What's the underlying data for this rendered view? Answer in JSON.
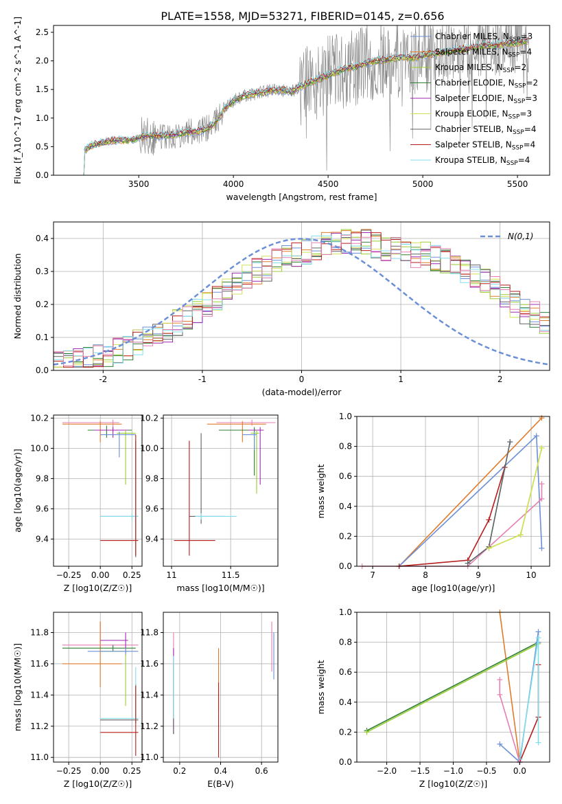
{
  "figure": {
    "title": "PLATE=1558, MJD=53271, FIBERID=0145, z=0.656"
  },
  "palette": {
    "Chabrier MILES": "#6a8fd6",
    "Salpeter MILES": "#e07b2a",
    "Kroupa MILES": "#9acd32",
    "Chabrier ELODIE": "#2e7d32",
    "Salpeter ELODIE": "#9c27b0",
    "Kroupa ELODIE": "#d4e157",
    "Chabrier STELIB": "#616161",
    "Salpeter STELIB": "#b71c1c",
    "Kroupa STELIB": "#80deea",
    "extra pink": "#e57fb1",
    "data": "#808080",
    "normal curve": "#6a8fd6"
  },
  "chart_data": [
    {
      "id": "spectrum",
      "type": "line",
      "xlabel": "wavelength [Angstrom, rest frame]",
      "ylabel": "Flux [f_λ10^-17 erg cm^-2 s^-1 A^-1]",
      "xlim": [
        3050,
        5670
      ],
      "ylim": [
        0,
        2.62
      ],
      "xticks": [
        3500,
        4000,
        4500,
        5000,
        5500
      ],
      "yticks": [
        0.0,
        0.5,
        1.0,
        1.5,
        2.0,
        2.5
      ],
      "legend_loc": "upper right",
      "legend": [
        {
          "label": "Chabrier MILES, N",
          "sub": "SSP",
          "tail": "=3",
          "color": "#6a8fd6"
        },
        {
          "label": "Salpeter MILES, N",
          "sub": "SSP",
          "tail": "=4",
          "color": "#e07b2a"
        },
        {
          "label": "Kroupa MILES, N",
          "sub": "SSP",
          "tail": "=2",
          "color": "#9acd32"
        },
        {
          "label": "Chabrier ELODIE, N",
          "sub": "SSP",
          "tail": "=2",
          "color": "#2e7d32"
        },
        {
          "label": "Salpeter ELODIE, N",
          "sub": "SSP",
          "tail": "=3",
          "color": "#9c27b0"
        },
        {
          "label": "Kroupa ELODIE, N",
          "sub": "SSP",
          "tail": "=3",
          "color": "#d4e157"
        },
        {
          "label": "Chabrier STELIB, N",
          "sub": "SSP",
          "tail": "=4",
          "color": "#616161"
        },
        {
          "label": "Salpeter STELIB, N",
          "sub": "SSP",
          "tail": "=4",
          "color": "#b71c1c"
        },
        {
          "label": "Kroupa STELIB, N",
          "sub": "SSP",
          "tail": "=4",
          "color": "#80deea"
        }
      ],
      "model_continuum": {
        "x": [
          3210,
          3250,
          3300,
          3350,
          3400,
          3450,
          3500,
          3550,
          3600,
          3650,
          3700,
          3750,
          3800,
          3850,
          3900,
          3950,
          4000,
          4050,
          4100,
          4150,
          4200,
          4250,
          4300,
          4350,
          4400,
          4450,
          4500,
          4550,
          4600,
          4650,
          4700,
          4750,
          4800,
          4850,
          4900,
          4950,
          5000,
          5050,
          5100,
          5150,
          5200,
          5250,
          5300,
          5350,
          5400,
          5450,
          5500,
          5550
        ],
        "y": [
          0.43,
          0.52,
          0.57,
          0.6,
          0.62,
          0.6,
          0.66,
          0.7,
          0.68,
          0.7,
          0.72,
          0.75,
          0.77,
          0.8,
          0.9,
          1.15,
          1.3,
          1.38,
          1.42,
          1.45,
          1.48,
          1.5,
          1.45,
          1.55,
          1.62,
          1.68,
          1.75,
          1.82,
          1.88,
          1.9,
          1.96,
          2.0,
          2.02,
          2.05,
          2.06,
          2.05,
          2.1,
          2.12,
          2.15,
          2.18,
          2.2,
          2.22,
          2.25,
          2.27,
          2.28,
          2.3,
          2.32,
          2.35
        ]
      },
      "data_range": [
        3210,
        5560
      ]
    },
    {
      "id": "residuals",
      "type": "histogram",
      "xlabel": "(data-model)/error",
      "ylabel": "Normed distribution",
      "xlim": [
        -2.5,
        2.5
      ],
      "ylim": [
        0,
        0.45
      ],
      "xticks": [
        -2,
        -1,
        0,
        1,
        2
      ],
      "yticks": [
        0.0,
        0.1,
        0.2,
        0.3,
        0.4
      ],
      "legend": [
        {
          "label": "N(0,1)",
          "color": "#6a8fd6"
        }
      ],
      "bin_edges_start": -2.5,
      "bin_width": 0.1,
      "base_profile": [
        0.02,
        0.025,
        0.03,
        0.035,
        0.04,
        0.05,
        0.06,
        0.07,
        0.085,
        0.1,
        0.11,
        0.125,
        0.145,
        0.16,
        0.18,
        0.2,
        0.22,
        0.24,
        0.26,
        0.28,
        0.3,
        0.31,
        0.33,
        0.34,
        0.35,
        0.36,
        0.37,
        0.38,
        0.38,
        0.39,
        0.395,
        0.39,
        0.38,
        0.37,
        0.37,
        0.36,
        0.35,
        0.35,
        0.34,
        0.33,
        0.32,
        0.3,
        0.29,
        0.27,
        0.25,
        0.23,
        0.2,
        0.18,
        0.17,
        0.15
      ]
    },
    {
      "id": "age-Z",
      "type": "errorbar",
      "xlabel": "Z [log10(Z/Z☉)]",
      "ylabel": "age  [log10(age/yr)]",
      "xlim": [
        -0.37,
        0.33
      ],
      "ylim": [
        9.22,
        10.22
      ],
      "xticks": [
        -0.25,
        0.0,
        0.25
      ],
      "xticklabels": [
        "−0.25",
        "0.00",
        "0.25"
      ],
      "yticks": [
        9.4,
        9.6,
        9.8,
        10.0,
        10.2
      ],
      "points": [
        {
          "x": 0.1,
          "y": 10.17,
          "xerr": [
            0.4,
            0.05
          ],
          "yerr": [
            0.06,
            0.02
          ],
          "color": "#e57fb1"
        },
        {
          "x": 0.0,
          "y": 10.16,
          "xerr": [
            0.3,
            0.17
          ],
          "yerr": [
            0.12,
            0.02
          ],
          "color": "#e07b2a"
        },
        {
          "x": 0.05,
          "y": 10.12,
          "xerr": [
            0.15,
            0.2
          ],
          "yerr": [
            0.05,
            0.03
          ],
          "color": "#2e7d32"
        },
        {
          "x": 0.1,
          "y": 10.12,
          "xerr": [
            0.15,
            0.12
          ],
          "yerr": [
            0.05,
            0.02
          ],
          "color": "#9c27b0"
        },
        {
          "x": 0.2,
          "y": 10.1,
          "xerr": [
            0.07,
            0.08
          ],
          "yerr": [
            0.34,
            0.02
          ],
          "color": "#9acd32"
        },
        {
          "x": 0.15,
          "y": 10.09,
          "xerr": [
            0.15,
            0.13
          ],
          "yerr": [
            0.15,
            0.02
          ],
          "color": "#6a8fd6"
        },
        {
          "x": 0.28,
          "y": 9.55,
          "xerr": [
            0.28,
            0.02
          ],
          "yerr": [
            0.27,
            0.5
          ],
          "color": "#616161"
        },
        {
          "x": 0.25,
          "y": 9.55,
          "xerr": [
            0.25,
            0.05
          ],
          "yerr": [
            0.02,
            0.02
          ],
          "color": "#80deea"
        },
        {
          "x": 0.28,
          "y": 9.39,
          "xerr": [
            0.28,
            0.02
          ],
          "yerr": [
            0.1,
            0.7
          ],
          "color": "#b71c1c"
        }
      ]
    },
    {
      "id": "age-mass",
      "type": "errorbar",
      "xlabel": "mass [log10(M/M☉)]",
      "ylabel": "",
      "xlim": [
        10.93,
        11.9
      ],
      "ylim": [
        9.22,
        10.22
      ],
      "xticks": [
        11.0,
        11.5
      ],
      "yticks": [
        9.4,
        9.6,
        9.8,
        10.0,
        10.2
      ],
      "points": [
        {
          "x": 11.68,
          "y": 10.17,
          "xerr": [
            0.3,
            0.2
          ],
          "yerr": [
            0.02,
            0.02
          ],
          "color": "#e57fb1"
        },
        {
          "x": 11.6,
          "y": 10.16,
          "xerr": [
            0.3,
            0.2
          ],
          "yerr": [
            0.12,
            0.02
          ],
          "color": "#e07b2a"
        },
        {
          "x": 11.7,
          "y": 10.12,
          "xerr": [
            0.3,
            0.02
          ],
          "yerr": [
            0.3,
            0.02
          ],
          "color": "#2e7d32"
        },
        {
          "x": 11.75,
          "y": 10.12,
          "xerr": [
            0.1,
            0.03
          ],
          "yerr": [
            0.36,
            0.02
          ],
          "color": "#9c27b0"
        },
        {
          "x": 11.72,
          "y": 10.1,
          "xerr": [
            0.05,
            0.02
          ],
          "yerr": [
            0.4,
            0.02
          ],
          "color": "#9acd32"
        },
        {
          "x": 11.7,
          "y": 10.09,
          "xerr": [
            0.1,
            0.02
          ],
          "yerr": [
            0.1,
            0.02
          ],
          "color": "#6a8fd6"
        },
        {
          "x": 11.25,
          "y": 9.55,
          "xerr": [
            0.1,
            0.2
          ],
          "yerr": [
            0.05,
            0.55
          ],
          "color": "#616161"
        },
        {
          "x": 11.25,
          "y": 9.55,
          "xerr": [
            0.05,
            0.3
          ],
          "yerr": [
            0.02,
            0.02
          ],
          "color": "#80deea"
        },
        {
          "x": 11.15,
          "y": 9.39,
          "xerr": [
            0.13,
            0.22
          ],
          "yerr": [
            0.1,
            0.66
          ],
          "color": "#b71c1c"
        }
      ]
    },
    {
      "id": "weight-age",
      "type": "line",
      "xlabel": "age  [log10(age/yr)]",
      "ylabel": "mass weight",
      "xlim": [
        6.7,
        10.35
      ],
      "ylim": [
        0,
        1
      ],
      "xticks": [
        7,
        8,
        9,
        10
      ],
      "yticks": [
        0.0,
        0.2,
        0.4,
        0.6,
        0.8,
        1.0
      ],
      "series": [
        {
          "name": "Salpeter MILES",
          "color": "#e07b2a",
          "x": [
            7.5,
            10.2
          ],
          "y": [
            0.0,
            0.99
          ]
        },
        {
          "name": "Chabrier MILES",
          "color": "#6a8fd6",
          "x": [
            7.5,
            10.1,
            10.2
          ],
          "y": [
            0.0,
            0.87,
            0.12
          ]
        },
        {
          "name": "pink",
          "color": "#e57fb1",
          "x": [
            6.8,
            8.8,
            10.2,
            10.2
          ],
          "y": [
            0.0,
            0.0,
            0.45,
            0.55
          ]
        },
        {
          "name": "Salpeter STELIB",
          "color": "#b71c1c",
          "x": [
            7.5,
            8.8,
            9.2,
            9.5
          ],
          "y": [
            0.0,
            0.04,
            0.31,
            0.66
          ]
        },
        {
          "name": "Kroupa STELIB",
          "color": "#80deea",
          "x": [
            8.8,
            9.2,
            9.6
          ],
          "y": [
            0.02,
            0.13,
            0.83
          ]
        },
        {
          "name": "Chabrier STELIB",
          "color": "#616161",
          "x": [
            8.8,
            9.2,
            9.6
          ],
          "y": [
            0.02,
            0.13,
            0.83
          ]
        },
        {
          "name": "Kroupa MILES",
          "color": "#9acd32",
          "x": [
            9.2,
            9.8,
            10.2
          ],
          "y": [
            0.12,
            0.21,
            0.79
          ]
        },
        {
          "name": "Kroupa ELODIE",
          "color": "#d4e157",
          "x": [
            9.2,
            9.8,
            10.2
          ],
          "y": [
            0.12,
            0.21,
            0.79
          ]
        }
      ]
    },
    {
      "id": "mass-Z",
      "type": "errorbar",
      "xlabel": "Z [log10(Z/Z☉)]",
      "ylabel": "mass [log10(M/M☉)]",
      "xlim": [
        -0.37,
        0.33
      ],
      "ylim": [
        10.97,
        11.93
      ],
      "xticks": [
        -0.25,
        0.0,
        0.25
      ],
      "xticklabels": [
        "−0.25",
        "0.00",
        "0.25"
      ],
      "yticks": [
        11.0,
        11.2,
        11.4,
        11.6,
        11.8
      ],
      "points": [
        {
          "x": 0.0,
          "y": 11.72,
          "xerr": [
            0.3,
            0.3
          ],
          "yerr": [
            0.02,
            0.15
          ],
          "color": "#e57fb1"
        },
        {
          "x": 0.0,
          "y": 11.6,
          "xerr": [
            0.3,
            0.17
          ],
          "yerr": [
            0.15,
            0.27
          ],
          "color": "#e07b2a"
        },
        {
          "x": 0.1,
          "y": 11.7,
          "xerr": [
            0.4,
            0.18
          ],
          "yerr": [
            0.02,
            0.02
          ],
          "color": "#2e7d32"
        },
        {
          "x": 0.2,
          "y": 11.75,
          "xerr": [
            0.2,
            0.02
          ],
          "yerr": [
            0.1,
            0.05
          ],
          "color": "#9c27b0"
        },
        {
          "x": 0.2,
          "y": 11.68,
          "xerr": [
            0.2,
            0.02
          ],
          "yerr": [
            0.35,
            0.02
          ],
          "color": "#9acd32"
        },
        {
          "x": 0.2,
          "y": 11.68,
          "xerr": [
            0.3,
            0.1
          ],
          "yerr": [
            0.02,
            0.02
          ],
          "color": "#6a8fd6"
        },
        {
          "x": 0.28,
          "y": 11.24,
          "xerr": [
            0.28,
            0.02
          ],
          "yerr": [
            0.02,
            0.23
          ],
          "color": "#616161"
        },
        {
          "x": 0.28,
          "y": 11.25,
          "xerr": [
            0.28,
            0.02
          ],
          "yerr": [
            0.02,
            0.33
          ],
          "color": "#80deea"
        },
        {
          "x": 0.28,
          "y": 11.16,
          "xerr": [
            0.28,
            0.02
          ],
          "yerr": [
            0.15,
            0.3
          ],
          "color": "#b71c1c"
        }
      ]
    },
    {
      "id": "mass-EBV",
      "type": "errorbar",
      "xlabel": "E(B-V)",
      "ylabel": "",
      "xlim": [
        0.12,
        0.68
      ],
      "ylim": [
        10.97,
        11.93
      ],
      "xticks": [
        0.2,
        0.4,
        0.6
      ],
      "yticks": [
        11.0,
        11.2,
        11.4,
        11.6,
        11.8
      ],
      "points": [
        {
          "x": 0.17,
          "y": 11.5,
          "xerr": [
            0,
            0
          ],
          "yerr": [
            0.35,
            0.3
          ],
          "color": "#e57fb1"
        },
        {
          "x": 0.17,
          "y": 11.5,
          "xerr": [
            0,
            0
          ],
          "yerr": [
            0.35,
            0.2
          ],
          "color": "#9c27b0"
        },
        {
          "x": 0.17,
          "y": 11.4,
          "xerr": [
            0,
            0
          ],
          "yerr": [
            0.25,
            0.2
          ],
          "color": "#616161"
        },
        {
          "x": 0.17,
          "y": 11.45,
          "xerr": [
            0,
            0
          ],
          "yerr": [
            0.2,
            0.2
          ],
          "color": "#80deea"
        },
        {
          "x": 0.39,
          "y": 11.45,
          "xerr": [
            0,
            0
          ],
          "yerr": [
            0.15,
            0.25
          ],
          "color": "#e07b2a"
        },
        {
          "x": 0.39,
          "y": 11.2,
          "xerr": [
            0,
            0
          ],
          "yerr": [
            0.2,
            0.28
          ],
          "color": "#b71c1c"
        },
        {
          "x": 0.65,
          "y": 11.7,
          "xerr": [
            0,
            0
          ],
          "yerr": [
            0.15,
            0.17
          ],
          "color": "#e57fb1"
        },
        {
          "x": 0.66,
          "y": 11.65,
          "xerr": [
            0,
            0
          ],
          "yerr": [
            0.15,
            0.15
          ],
          "color": "#6a8fd6"
        }
      ]
    },
    {
      "id": "weight-Z",
      "type": "line",
      "xlabel": "Z [log10(Z/Z☉)]",
      "ylabel": "mass weight",
      "xlim": [
        -2.45,
        0.45
      ],
      "ylim": [
        0,
        1
      ],
      "xticks": [
        -2.0,
        -1.5,
        -1.0,
        -0.5,
        0.0
      ],
      "xticklabels": [
        "−2.0",
        "−1.5",
        "−1.0",
        "−0.5",
        "0.0"
      ],
      "yticks": [
        0.0,
        0.2,
        0.4,
        0.6,
        0.8,
        1.0
      ],
      "series": [
        {
          "name": "Salpeter MILES",
          "color": "#e07b2a",
          "x": [
            -0.3,
            0.0
          ],
          "y": [
            1.0,
            0.0
          ]
        },
        {
          "name": "Chabrier ELODIE",
          "color": "#2e7d32",
          "x": [
            -2.3,
            0.28
          ],
          "y": [
            0.21,
            0.8
          ]
        },
        {
          "name": "Kroupa MILES",
          "color": "#9acd32",
          "x": [
            -2.3,
            0.28
          ],
          "y": [
            0.2,
            0.79
          ]
        },
        {
          "name": "Chabrier MILES",
          "color": "#6a8fd6",
          "x": [
            -0.3,
            0.0,
            0.28,
            0.28
          ],
          "y": [
            0.12,
            0.0,
            0.87,
            0.8
          ]
        },
        {
          "name": "Salpeter STELIB",
          "color": "#b71c1c",
          "x": [
            0.0,
            0.28,
            0.28
          ],
          "y": [
            0.0,
            0.3,
            0.65
          ]
        },
        {
          "name": "Kroupa STELIB",
          "color": "#80deea",
          "x": [
            0.0,
            0.28,
            0.28
          ],
          "y": [
            0.02,
            0.83,
            0.13
          ]
        },
        {
          "name": "pink",
          "color": "#e57fb1",
          "x": [
            -0.3,
            -0.3,
            0.0
          ],
          "y": [
            0.55,
            0.45,
            0.0
          ]
        }
      ]
    }
  ]
}
